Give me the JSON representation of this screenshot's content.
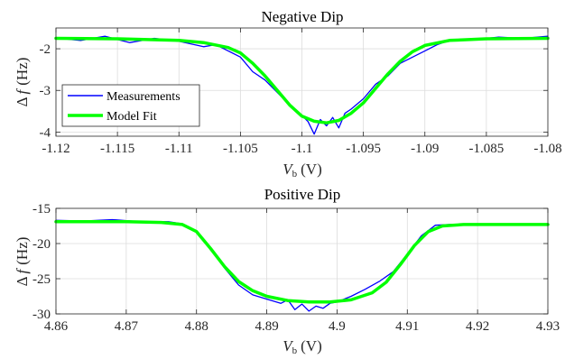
{
  "chart_data": [
    {
      "type": "line",
      "title": "Negative Dip",
      "xlabel_main": "V",
      "xlabel_sub": "b",
      "xlabel_unit": "(V)",
      "ylabel_main": "Δ",
      "ylabel_var": "f",
      "ylabel_unit": "(Hz)",
      "xlim": [
        -1.12,
        -1.08
      ],
      "ylim": [
        -4.1,
        -1.5
      ],
      "xticks": [
        -1.12,
        -1.115,
        -1.11,
        -1.105,
        -1.1,
        -1.095,
        -1.09,
        -1.085,
        -1.08
      ],
      "xtick_labels": [
        "-1.12",
        "-1.115",
        "-1.11",
        "-1.105",
        "-1.1",
        "-1.095",
        "-1.09",
        "-1.085",
        "-1.08"
      ],
      "yticks": [
        -4,
        -3,
        -2
      ],
      "ytick_labels": [
        "-4",
        "-3",
        "-2"
      ],
      "grid": true,
      "legend_position": "bottom-left",
      "series": [
        {
          "name": "Measurements",
          "color": "#0000ff",
          "x": [
            -1.12,
            -1.118,
            -1.116,
            -1.114,
            -1.112,
            -1.11,
            -1.108,
            -1.107,
            -1.106,
            -1.105,
            -1.104,
            -1.103,
            -1.102,
            -1.101,
            -1.1,
            -1.0995,
            -1.099,
            -1.0985,
            -1.098,
            -1.0975,
            -1.097,
            -1.0965,
            -1.096,
            -1.095,
            -1.094,
            -1.093,
            -1.092,
            -1.091,
            -1.09,
            -1.089,
            -1.088,
            -1.086,
            -1.084,
            -1.082,
            -1.08
          ],
          "y": [
            -1.74,
            -1.8,
            -1.7,
            -1.85,
            -1.75,
            -1.82,
            -1.95,
            -1.9,
            -2.05,
            -2.2,
            -2.55,
            -2.75,
            -3.05,
            -3.35,
            -3.6,
            -3.75,
            -4.05,
            -3.7,
            -3.85,
            -3.65,
            -3.9,
            -3.55,
            -3.45,
            -3.2,
            -2.85,
            -2.65,
            -2.35,
            -2.2,
            -2.05,
            -1.9,
            -1.8,
            -1.78,
            -1.72,
            -1.75,
            -1.7
          ]
        },
        {
          "name": "Model Fit",
          "color": "#00ff00",
          "x": [
            -1.12,
            -1.115,
            -1.11,
            -1.108,
            -1.106,
            -1.105,
            -1.104,
            -1.103,
            -1.102,
            -1.101,
            -1.1,
            -1.099,
            -1.098,
            -1.097,
            -1.096,
            -1.095,
            -1.094,
            -1.093,
            -1.092,
            -1.091,
            -1.09,
            -1.088,
            -1.085,
            -1.08
          ],
          "y": [
            -1.75,
            -1.76,
            -1.8,
            -1.85,
            -1.97,
            -2.1,
            -2.35,
            -2.65,
            -3.0,
            -3.35,
            -3.62,
            -3.74,
            -3.78,
            -3.72,
            -3.55,
            -3.3,
            -2.95,
            -2.6,
            -2.3,
            -2.07,
            -1.92,
            -1.8,
            -1.76,
            -1.75
          ]
        }
      ]
    },
    {
      "type": "line",
      "title": "Positive Dip",
      "xlabel_main": "V",
      "xlabel_sub": "b",
      "xlabel_unit": "(V)",
      "ylabel_main": "Δ",
      "ylabel_var": "f",
      "ylabel_unit": "(Hz)",
      "xlim": [
        4.86,
        4.93
      ],
      "ylim": [
        -30,
        -15
      ],
      "xticks": [
        4.86,
        4.87,
        4.88,
        4.89,
        4.9,
        4.91,
        4.92,
        4.93
      ],
      "xtick_labels": [
        "4.86",
        "4.87",
        "4.88",
        "4.89",
        "4.9",
        "4.91",
        "4.92",
        "4.93"
      ],
      "yticks": [
        -30,
        -25,
        -20,
        -15
      ],
      "ytick_labels": [
        "-30",
        "-25",
        "-20",
        "-15"
      ],
      "grid": true,
      "series": [
        {
          "name": "Measurements",
          "color": "#0000ff",
          "x": [
            4.86,
            4.864,
            4.868,
            4.872,
            4.876,
            4.878,
            4.88,
            4.882,
            4.884,
            4.886,
            4.888,
            4.89,
            4.892,
            4.893,
            4.894,
            4.895,
            4.896,
            4.897,
            4.898,
            4.899,
            4.9,
            4.902,
            4.904,
            4.906,
            4.908,
            4.91,
            4.912,
            4.914,
            4.916,
            4.92,
            4.925,
            4.93
          ],
          "y": [
            -16.7,
            -16.8,
            -16.6,
            -16.9,
            -16.9,
            -17.2,
            -18.4,
            -20.8,
            -23.5,
            -25.9,
            -27.3,
            -27.9,
            -28.5,
            -28.0,
            -29.4,
            -28.6,
            -29.6,
            -28.9,
            -29.2,
            -28.5,
            -28.3,
            -27.5,
            -26.5,
            -25.4,
            -24.0,
            -21.5,
            -18.9,
            -17.4,
            -17.3,
            -17.4,
            -17.2,
            -17.3
          ]
        },
        {
          "name": "Model Fit",
          "color": "#00ff00",
          "x": [
            4.86,
            4.87,
            4.875,
            4.878,
            4.88,
            4.882,
            4.884,
            4.886,
            4.888,
            4.89,
            4.893,
            4.896,
            4.899,
            4.902,
            4.905,
            4.907,
            4.909,
            4.911,
            4.913,
            4.915,
            4.918,
            4.93
          ],
          "y": [
            -16.9,
            -16.9,
            -17.0,
            -17.3,
            -18.3,
            -20.7,
            -23.3,
            -25.4,
            -26.7,
            -27.5,
            -28.1,
            -28.3,
            -28.3,
            -28.0,
            -27.0,
            -25.5,
            -23.0,
            -20.3,
            -18.3,
            -17.5,
            -17.3,
            -17.3
          ]
        }
      ]
    }
  ]
}
